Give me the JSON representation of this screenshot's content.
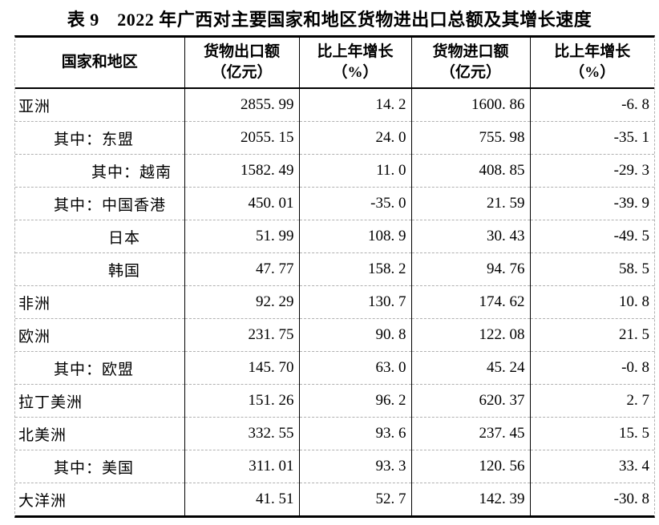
{
  "title": "表 9　2022 年广西对主要国家和地区货物进出口总额及其增长速度",
  "table": {
    "columns": [
      {
        "label": "国家和地区",
        "sub": ""
      },
      {
        "label": "货物出口额",
        "sub": "（亿元）"
      },
      {
        "label": "比上年增长",
        "sub": "（%）"
      },
      {
        "label": "货物进口额",
        "sub": "（亿元）"
      },
      {
        "label": "比上年增长",
        "sub": "（%）"
      }
    ],
    "rows": [
      {
        "region": "亚洲",
        "indent": 0,
        "export": "2855.99",
        "export_growth": "14.2",
        "import": "1600.86",
        "import_growth": "-6.8"
      },
      {
        "region": "其中：东盟",
        "indent": 1,
        "export": "2055.15",
        "export_growth": "24.0",
        "import": "755.98",
        "import_growth": "-35.1"
      },
      {
        "region": "其中：越南",
        "indent": 2,
        "export": "1582.49",
        "export_growth": "11.0",
        "import": "408.85",
        "import_growth": "-29.3"
      },
      {
        "region": "其中：中国香港",
        "indent": 1,
        "export": "450.01",
        "export_growth": "-35.0",
        "import": "21.59",
        "import_growth": "-39.9"
      },
      {
        "region": "日本",
        "indent": 3,
        "export": "51.99",
        "export_growth": "108.9",
        "import": "30.43",
        "import_growth": "-49.5"
      },
      {
        "region": "韩国",
        "indent": 3,
        "export": "47.77",
        "export_growth": "158.2",
        "import": "94.76",
        "import_growth": "58.5"
      },
      {
        "region": "非洲",
        "indent": 0,
        "export": "92.29",
        "export_growth": "130.7",
        "import": "174.62",
        "import_growth": "10.8"
      },
      {
        "region": "欧洲",
        "indent": 0,
        "export": "231.75",
        "export_growth": "90.8",
        "import": "122.08",
        "import_growth": "21.5"
      },
      {
        "region": "其中：欧盟",
        "indent": 1,
        "export": "145.70",
        "export_growth": "63.0",
        "import": "45.24",
        "import_growth": "-0.8"
      },
      {
        "region": "拉丁美洲",
        "indent": 0,
        "export": "151.26",
        "export_growth": "96.2",
        "import": "620.37",
        "import_growth": "2.7"
      },
      {
        "region": "北美洲",
        "indent": 0,
        "export": "332.55",
        "export_growth": "93.6",
        "import": "237.45",
        "import_growth": "15.5"
      },
      {
        "region": "其中：美国",
        "indent": 1,
        "export": "311.01",
        "export_growth": "93.3",
        "import": "120.56",
        "import_growth": "33.4"
      },
      {
        "region": "大洋洲",
        "indent": 0,
        "export": "41.51",
        "export_growth": "52.7",
        "import": "142.39",
        "import_growth": "-30.8"
      }
    ]
  },
  "colors": {
    "text": "#000000",
    "solid_border": "#000000",
    "dashed_border": "#b0b0b0",
    "background": "#ffffff"
  }
}
